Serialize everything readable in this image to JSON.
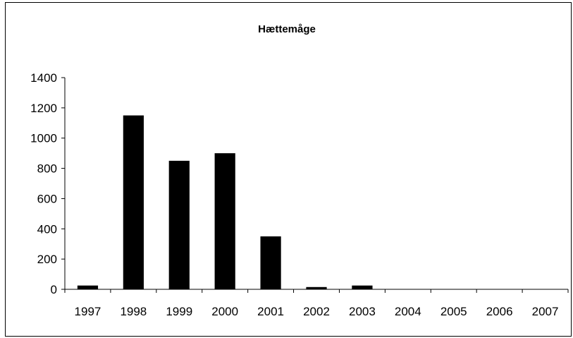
{
  "chart_data": {
    "type": "bar",
    "title": "Hættemåge",
    "xlabel": "",
    "ylabel": "",
    "categories": [
      "1997",
      "1998",
      "1999",
      "2000",
      "2001",
      "2002",
      "2003",
      "2004",
      "2005",
      "2006",
      "2007"
    ],
    "values": [
      25,
      1150,
      850,
      900,
      350,
      15,
      25,
      0,
      0,
      0,
      0
    ],
    "ylim": [
      0,
      1400
    ],
    "yticks": [
      "0",
      "200",
      "400",
      "600",
      "800",
      "1000",
      "1200",
      "1400"
    ],
    "grid": false,
    "legend": "none",
    "bar_color": "#000000"
  }
}
